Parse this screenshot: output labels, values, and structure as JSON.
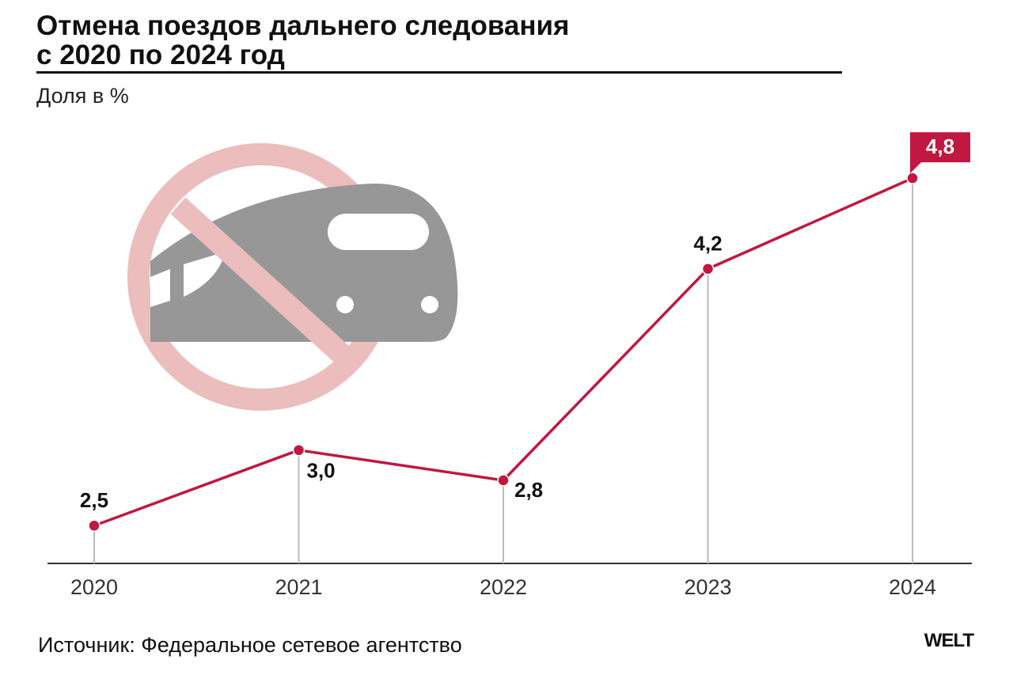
{
  "chart_data": {
    "type": "line",
    "title": "Отмена поездов дальнего следования\nс 2020 по 2024 год",
    "subtitle": "Доля в %",
    "categories": [
      "2020",
      "2021",
      "2022",
      "2023",
      "2024"
    ],
    "series": [
      {
        "color": "#c01840",
        "values": [
          2.5,
          3.0,
          2.8,
          4.2,
          4.8
        ],
        "value_labels": [
          "2,5",
          "3,0",
          "2,8",
          "4,2",
          "4,8"
        ]
      }
    ],
    "ylim": [
      2.25,
      5.0
    ],
    "source": "Источник: Федеральное сетевое агентство",
    "brand": "WELT"
  }
}
